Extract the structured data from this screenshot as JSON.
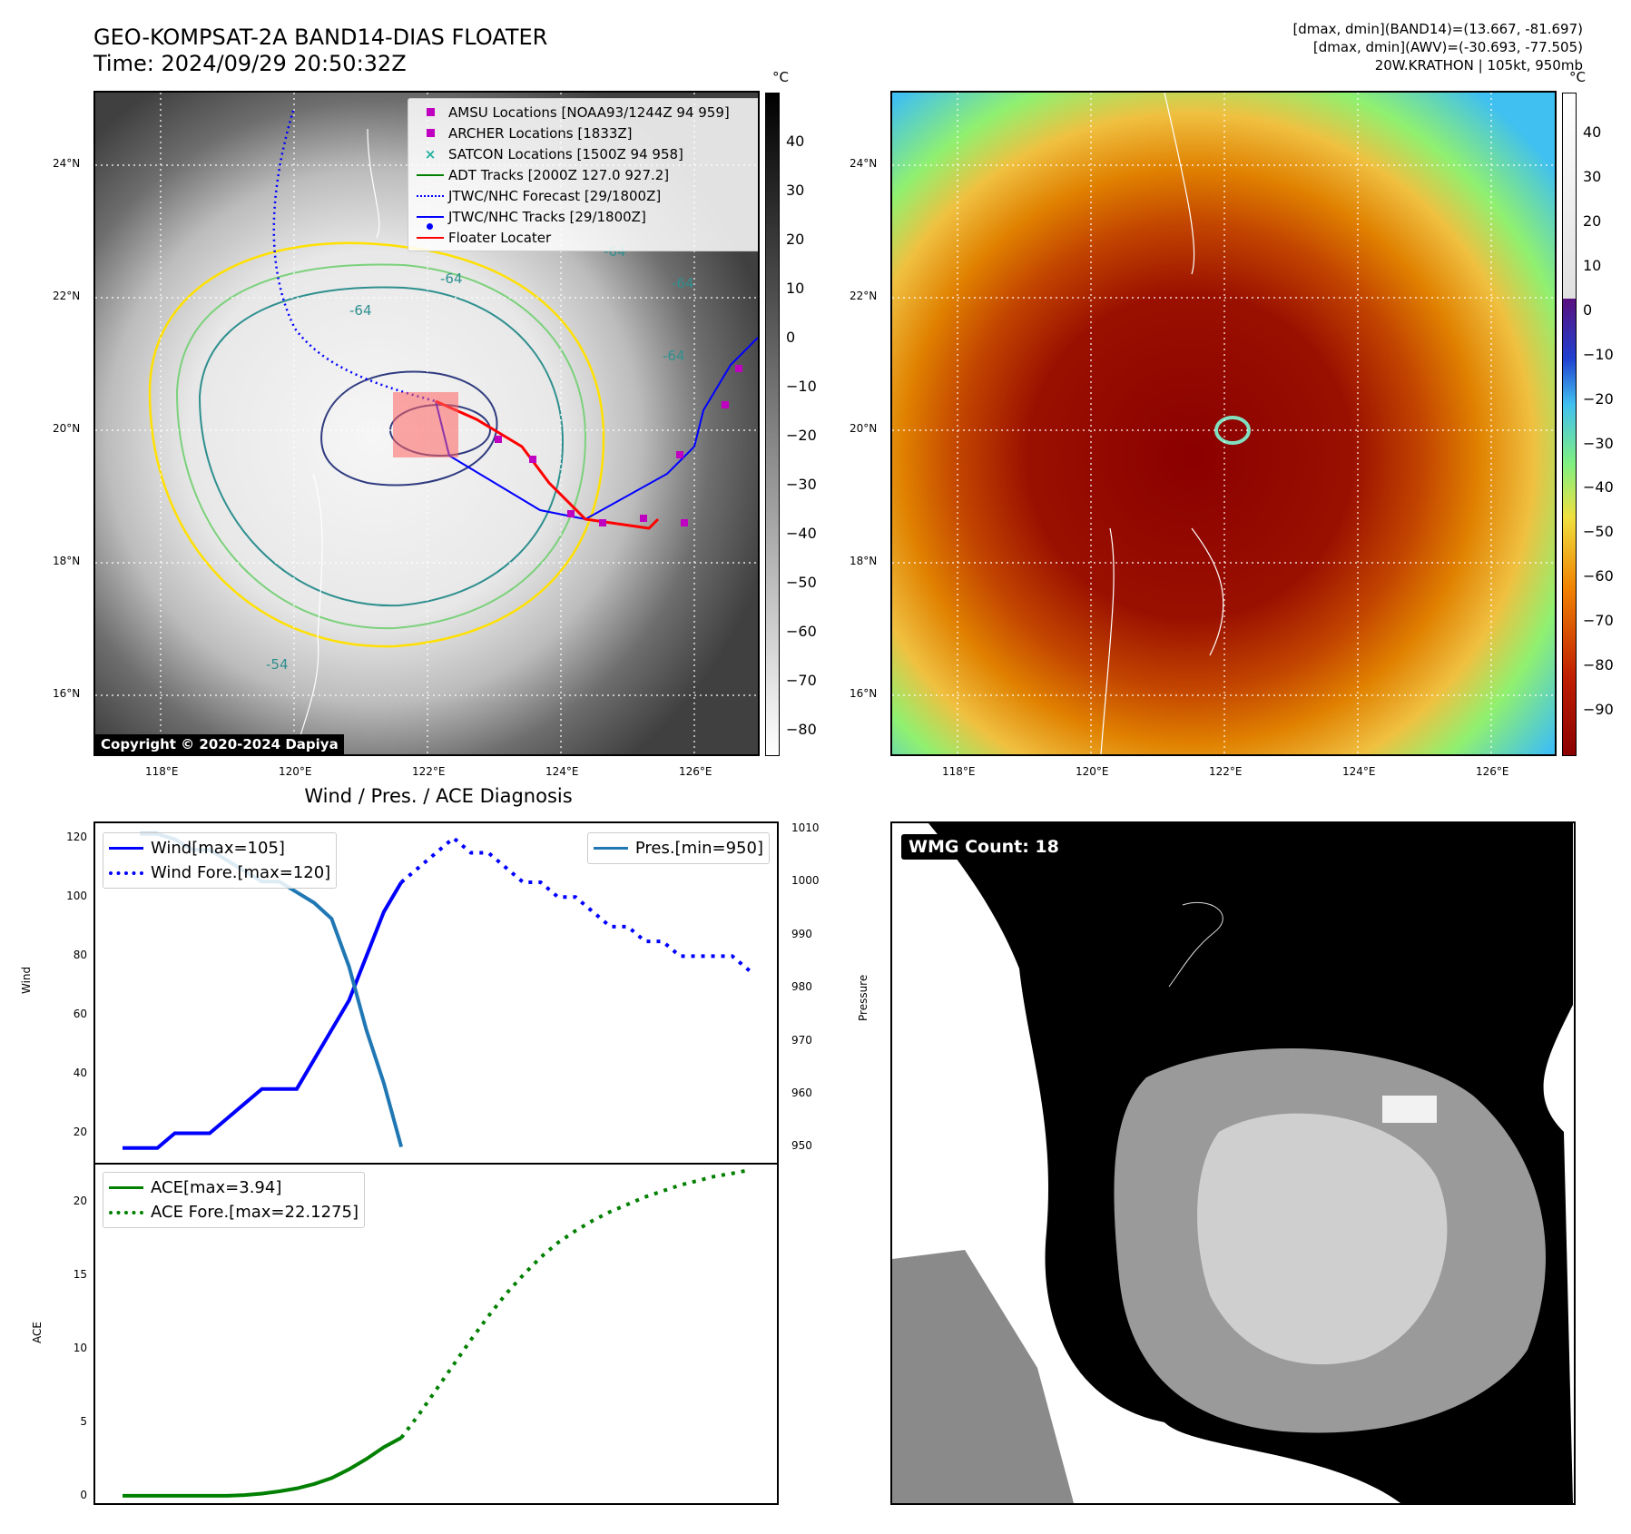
{
  "header": {
    "title_line1": "GEO-KOMPSAT-2A BAND14-DIAS FLOATER",
    "title_line2": "Time: 2024/09/29 20:50:32Z",
    "info_line1": "[dmax, dmin](BAND14)=(13.667, -81.697)",
    "info_line2": "[dmax, dmin](AWV)=(-30.693, -77.505)",
    "info_line3": "20W.KRATHON | 105kt, 950mb"
  },
  "map": {
    "lon_ticks": [
      "118°E",
      "120°E",
      "122°E",
      "124°E",
      "126°E"
    ],
    "lat_ticks": [
      "24°N",
      "22°N",
      "20°N",
      "18°N",
      "16°N"
    ],
    "contour_labels": [
      "-64",
      "-64",
      "-64",
      "-64",
      "-64",
      "-54"
    ],
    "copyright": "Copyright © 2020-2024 Dapiya",
    "legend": [
      {
        "label": "AMSU Locations [NOAA93/1244Z 94 959]",
        "color": "#c000c0",
        "symbol": "square"
      },
      {
        "label": "ARCHER Locations [1833Z]",
        "color": "#c000c0",
        "symbol": "square"
      },
      {
        "label": "SATCON Locations [1500Z 94 958]",
        "color": "#20b0a0",
        "symbol": "x"
      },
      {
        "label": "ADT Tracks [2000Z 127.0 927.2]",
        "color": "#008000",
        "symbol": "line"
      },
      {
        "label": "JTWC/NHC Forecast [29/1800Z]",
        "color": "#0000ff",
        "symbol": "dotted"
      },
      {
        "label": "JTWC/NHC Tracks [29/1800Z]",
        "color": "#0000ff",
        "symbol": "line-dot"
      },
      {
        "label": "Floater Locater",
        "color": "#ff0000",
        "symbol": "line"
      }
    ]
  },
  "colorbar_left": {
    "unit": "°C",
    "ticks": [
      "40",
      "30",
      "20",
      "10",
      "0",
      "−10",
      "−20",
      "−30",
      "−40",
      "−50",
      "−60",
      "−70",
      "−80"
    ]
  },
  "colorbar_right": {
    "unit": "°C",
    "ticks": [
      "40",
      "30",
      "20",
      "10",
      "0",
      "−10",
      "−20",
      "−30",
      "−40",
      "−50",
      "−60",
      "−70",
      "−80",
      "−90"
    ]
  },
  "diagnosis": {
    "title": "Wind / Pres. / ACE Diagnosis",
    "wmg_label": "WMG Count: 18"
  },
  "chart_data": [
    {
      "type": "line",
      "title": "Wind / Pres. / ACE Diagnosis",
      "ylabel": "Wind",
      "y2label": "Pressure",
      "ylim": [
        10,
        125
      ],
      "y2lim": [
        947,
        1011
      ],
      "yticks": [
        "120",
        "100",
        "80",
        "60",
        "40",
        "20"
      ],
      "y2ticks": [
        "1010",
        "1000",
        "990",
        "980",
        "970",
        "960",
        "950"
      ],
      "x": [
        0,
        1,
        2,
        3,
        4,
        5,
        6,
        7,
        8,
        9,
        10,
        11,
        12,
        13,
        14,
        15,
        16,
        17,
        18,
        19,
        20,
        21,
        22,
        23,
        24,
        25,
        26,
        27,
        28,
        29,
        30,
        31,
        32,
        33,
        34,
        35,
        36
      ],
      "series": [
        {
          "name": "Wind[max=105]",
          "color": "#0000ff",
          "style": "solid",
          "axis": "left",
          "x": [
            0,
            1,
            2,
            3,
            4,
            5,
            6,
            7,
            8,
            9,
            10,
            11,
            12,
            13,
            14,
            15,
            16
          ],
          "values": [
            15,
            15,
            15,
            20,
            20,
            20,
            25,
            30,
            35,
            35,
            35,
            45,
            55,
            65,
            80,
            95,
            105
          ]
        },
        {
          "name": "Wind Fore.[max=120]",
          "color": "#0000ff",
          "style": "dotted",
          "axis": "left",
          "x": [
            16,
            17,
            18,
            19,
            20,
            21,
            22,
            23,
            24,
            25,
            26,
            27,
            28,
            29,
            30,
            31,
            32,
            33,
            34,
            35,
            36
          ],
          "values": [
            105,
            110,
            115,
            120,
            115,
            115,
            110,
            105,
            105,
            100,
            100,
            95,
            90,
            90,
            85,
            85,
            80,
            80,
            80,
            80,
            75
          ]
        },
        {
          "name": "Pres.[min=950]",
          "color": "#1f77b4",
          "style": "solid",
          "axis": "right",
          "x": [
            1,
            2,
            3,
            4,
            5,
            6,
            7,
            8,
            9,
            10,
            11,
            12,
            13,
            14,
            15,
            16
          ],
          "values": [
            1009,
            1009,
            1008,
            1006,
            1006,
            1004,
            1002,
            1000,
            1000,
            998,
            996,
            993,
            984,
            972,
            962,
            950
          ]
        }
      ]
    },
    {
      "type": "line",
      "ylabel": "ACE",
      "ylim": [
        -0.5,
        22.5
      ],
      "yticks": [
        "20",
        "15",
        "10",
        "5",
        "0"
      ],
      "series": [
        {
          "name": "ACE[max=3.94]",
          "color": "#008000",
          "style": "solid",
          "x": [
            0,
            1,
            2,
            3,
            4,
            5,
            6,
            7,
            8,
            9,
            10,
            11,
            12,
            13,
            14,
            15,
            16
          ],
          "values": [
            0,
            0,
            0,
            0,
            0,
            0,
            0,
            0.05,
            0.15,
            0.3,
            0.5,
            0.8,
            1.2,
            1.8,
            2.5,
            3.3,
            3.94
          ]
        },
        {
          "name": "ACE Fore.[max=22.1275]",
          "color": "#008000",
          "style": "dotted",
          "x": [
            16,
            17,
            18,
            19,
            20,
            21,
            22,
            23,
            24,
            25,
            26,
            27,
            28,
            29,
            30,
            31,
            32,
            33,
            34,
            35,
            36
          ],
          "values": [
            3.94,
            5.5,
            7.2,
            8.9,
            10.6,
            12.2,
            13.7,
            15.0,
            16.2,
            17.2,
            18.0,
            18.7,
            19.3,
            19.8,
            20.3,
            20.7,
            21.1,
            21.4,
            21.7,
            21.9,
            22.1275
          ]
        }
      ]
    }
  ]
}
